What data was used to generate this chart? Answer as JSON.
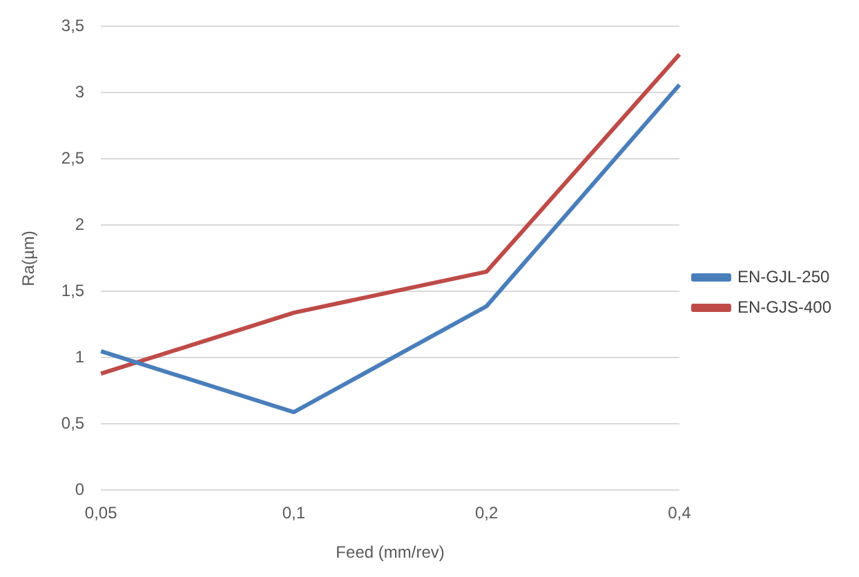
{
  "chart_data": {
    "type": "line",
    "xlabel": "Feed (mm/rev)",
    "ylabel": "Ra(µm)",
    "categories": [
      "0,05",
      "0,1",
      "0,2",
      "0,4"
    ],
    "series": [
      {
        "name": "EN-GJL-250",
        "color": "#4a7ebb",
        "values": [
          1.05,
          0.59,
          1.39,
          3.06
        ]
      },
      {
        "name": "EN-GJS-400",
        "color": "#be4b48",
        "values": [
          0.88,
          1.34,
          1.65,
          3.29
        ]
      }
    ],
    "ylim": [
      0,
      3.5
    ],
    "yticks": [
      0,
      {
        "value": 0.5,
        "label": "0,5"
      },
      1,
      {
        "value": 1.5,
        "label": "1,5"
      },
      2,
      {
        "value": 2.5,
        "label": "2,5"
      },
      3,
      {
        "value": 3.5,
        "label": "3,5"
      }
    ],
    "grid": "y",
    "legend": "right",
    "marker": "none",
    "line_style": "solid"
  }
}
